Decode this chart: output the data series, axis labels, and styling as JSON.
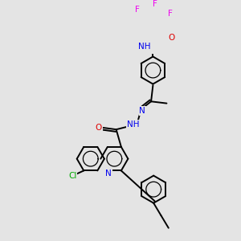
{
  "background_color": "#e4e4e4",
  "atom_colors": {
    "C": "#000000",
    "H": "#606060",
    "N": "#0000ee",
    "O": "#dd0000",
    "F": "#ee00ee",
    "Cl": "#00aa00"
  },
  "bond_color": "#000000",
  "bond_width": 1.4,
  "figsize": [
    3.0,
    3.0
  ],
  "dpi": 100
}
